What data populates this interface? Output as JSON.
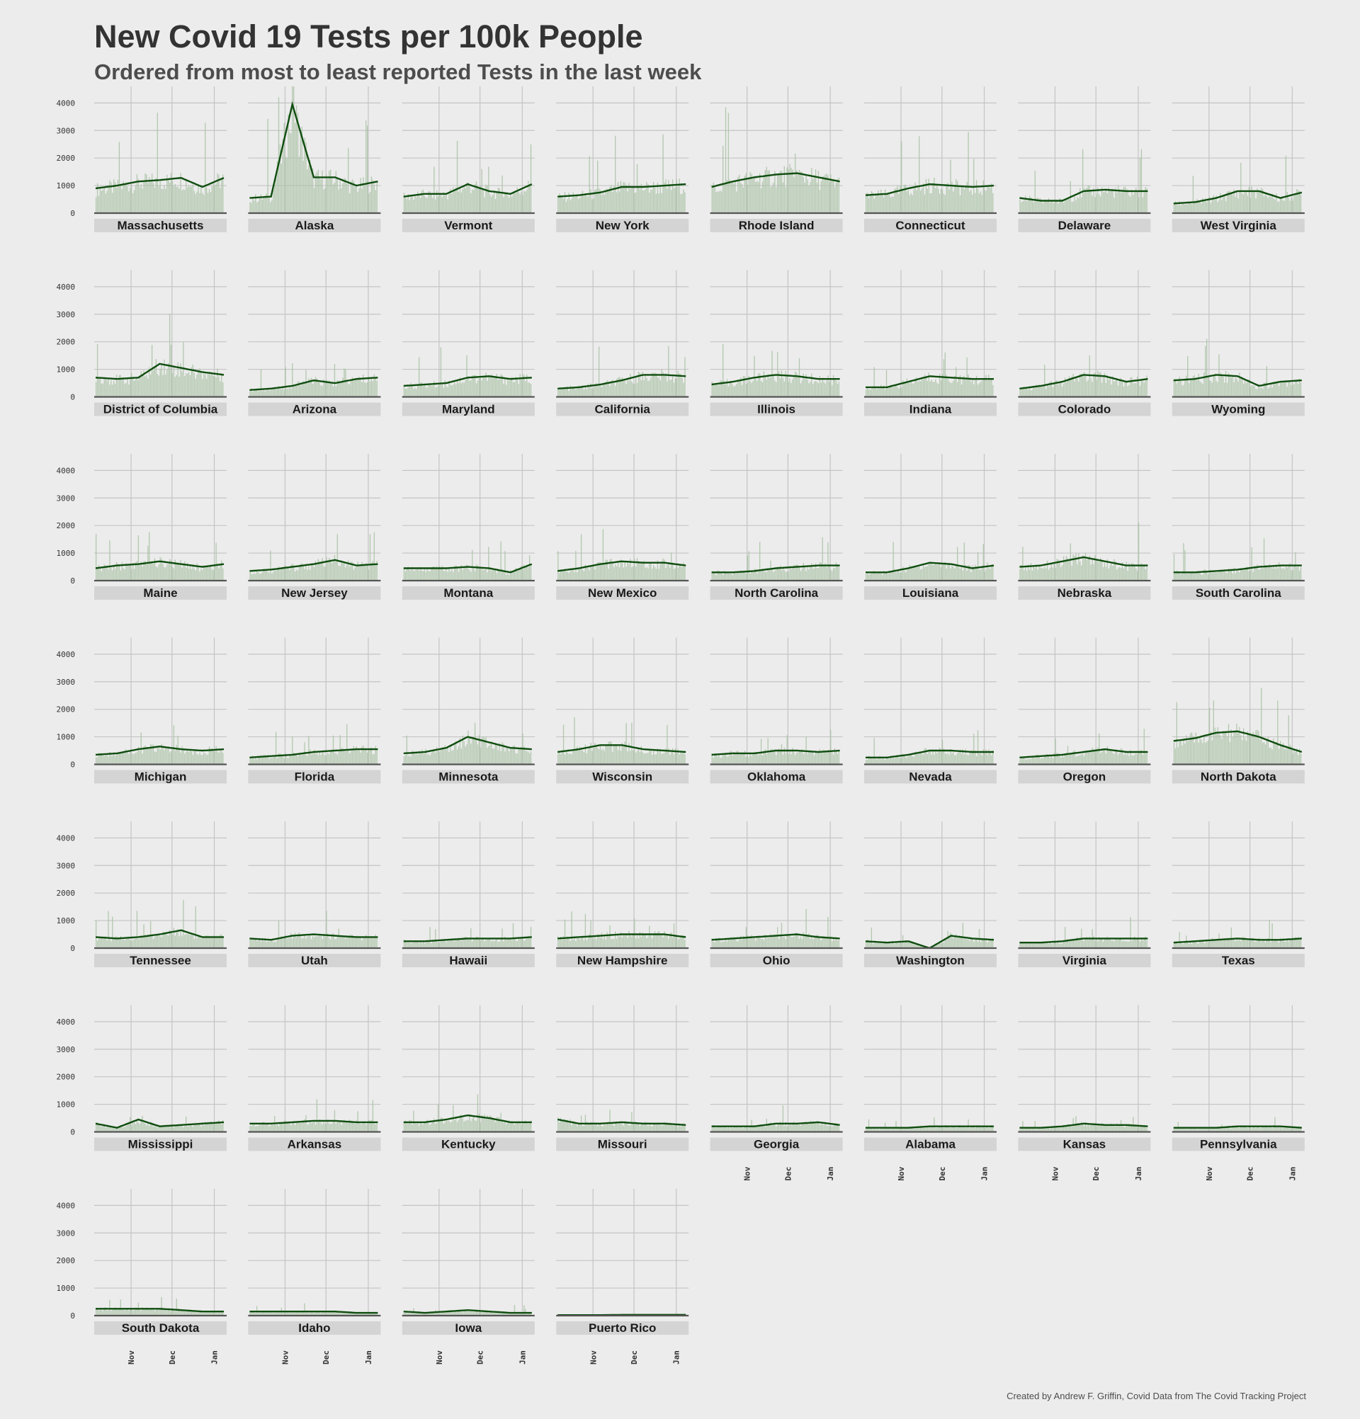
{
  "title": "New Covid 19 Tests per 100k People",
  "subtitle": "Ordered from most to least reported Tests in the last week",
  "caption": "Created by Andrew F. Griffin, Covid Data from The Covid Tracking Project",
  "colors": {
    "background": "#ececec",
    "bar": "#a9c2a4",
    "line": "#0f4d0f",
    "grid": "#c4c4c4",
    "baseline": "#555555",
    "strip": "#d4d4d4"
  },
  "chart_data": {
    "type": "line",
    "ylim": [
      0,
      4600
    ],
    "y_ticks": [
      0,
      1000,
      2000,
      3000,
      4000
    ],
    "y_tick_labels": [
      "0",
      "1000",
      "2000",
      "3000",
      "4000"
    ],
    "x_range": [
      "2020-10-06",
      "2021-01-08"
    ],
    "x_ticks": [
      "2020-11-01",
      "2020-12-01",
      "2021-01-01"
    ],
    "x_tick_labels": [
      "Nov",
      "Dec",
      "Jan"
    ],
    "grid": true,
    "legend": "none",
    "series_encoding": "bars = daily new tests per 100k; line = rolling average",
    "x_points": [
      "2020-10-06",
      "2020-10-22",
      "2020-11-06",
      "2020-11-22",
      "2020-12-08",
      "2020-12-24",
      "2021-01-08"
    ],
    "facets": [
      {
        "name": "Massachusetts",
        "values": [
          900,
          1000,
          1150,
          1200,
          1280,
          950,
          1280
        ]
      },
      {
        "name": "Alaska",
        "values": [
          550,
          600,
          3950,
          1300,
          1300,
          1000,
          1150
        ]
      },
      {
        "name": "Vermont",
        "values": [
          600,
          700,
          700,
          1050,
          800,
          700,
          1050
        ]
      },
      {
        "name": "New York",
        "values": [
          600,
          650,
          750,
          950,
          950,
          1000,
          1050
        ]
      },
      {
        "name": "Rhode Island",
        "values": [
          950,
          1150,
          1300,
          1400,
          1450,
          1300,
          1150
        ]
      },
      {
        "name": "Connecticut",
        "values": [
          650,
          700,
          900,
          1050,
          1000,
          950,
          1000
        ]
      },
      {
        "name": "Delaware",
        "values": [
          550,
          450,
          450,
          800,
          850,
          800,
          800
        ]
      },
      {
        "name": "West Virginia",
        "values": [
          350,
          400,
          550,
          800,
          800,
          550,
          750
        ]
      },
      {
        "name": "District of Columbia",
        "values": [
          700,
          650,
          700,
          1200,
          1050,
          900,
          800
        ]
      },
      {
        "name": "Arizona",
        "values": [
          250,
          300,
          400,
          600,
          500,
          650,
          700
        ]
      },
      {
        "name": "Maryland",
        "values": [
          400,
          450,
          500,
          700,
          750,
          650,
          700
        ]
      },
      {
        "name": "California",
        "values": [
          300,
          350,
          450,
          600,
          800,
          800,
          750
        ]
      },
      {
        "name": "Illinois",
        "values": [
          450,
          550,
          700,
          800,
          750,
          650,
          650
        ]
      },
      {
        "name": "Indiana",
        "values": [
          350,
          350,
          550,
          750,
          700,
          650,
          650
        ]
      },
      {
        "name": "Colorado",
        "values": [
          300,
          400,
          550,
          800,
          750,
          550,
          650
        ]
      },
      {
        "name": "Wyoming",
        "values": [
          600,
          650,
          800,
          750,
          400,
          550,
          600
        ]
      },
      {
        "name": "Maine",
        "values": [
          450,
          550,
          600,
          700,
          600,
          500,
          600
        ]
      },
      {
        "name": "New Jersey",
        "values": [
          350,
          400,
          500,
          600,
          750,
          550,
          600
        ]
      },
      {
        "name": "Montana",
        "values": [
          450,
          450,
          450,
          500,
          450,
          300,
          600
        ]
      },
      {
        "name": "New Mexico",
        "values": [
          350,
          450,
          600,
          700,
          650,
          650,
          550
        ]
      },
      {
        "name": "North Carolina",
        "values": [
          300,
          300,
          350,
          450,
          500,
          550,
          550
        ]
      },
      {
        "name": "Louisiana",
        "values": [
          300,
          300,
          450,
          650,
          600,
          450,
          550
        ]
      },
      {
        "name": "Nebraska",
        "values": [
          500,
          550,
          700,
          850,
          700,
          550,
          550
        ]
      },
      {
        "name": "South Carolina",
        "values": [
          300,
          300,
          350,
          400,
          500,
          550,
          550
        ]
      },
      {
        "name": "Michigan",
        "values": [
          350,
          400,
          550,
          650,
          550,
          500,
          550
        ]
      },
      {
        "name": "Florida",
        "values": [
          250,
          300,
          350,
          450,
          500,
          550,
          550
        ]
      },
      {
        "name": "Minnesota",
        "values": [
          400,
          450,
          600,
          1000,
          800,
          600,
          550
        ]
      },
      {
        "name": "Wisconsin",
        "values": [
          450,
          550,
          700,
          700,
          550,
          500,
          450
        ]
      },
      {
        "name": "Oklahoma",
        "values": [
          350,
          400,
          400,
          500,
          500,
          450,
          500
        ]
      },
      {
        "name": "Nevada",
        "values": [
          250,
          250,
          350,
          500,
          500,
          450,
          450
        ]
      },
      {
        "name": "Oregon",
        "values": [
          250,
          300,
          350,
          450,
          550,
          450,
          450
        ]
      },
      {
        "name": "North Dakota",
        "values": [
          850,
          950,
          1150,
          1200,
          1000,
          700,
          450
        ]
      },
      {
        "name": "Tennessee",
        "values": [
          400,
          350,
          400,
          500,
          650,
          400,
          400
        ]
      },
      {
        "name": "Utah",
        "values": [
          350,
          300,
          450,
          500,
          450,
          400,
          400
        ]
      },
      {
        "name": "Hawaii",
        "values": [
          250,
          250,
          300,
          350,
          350,
          350,
          400
        ]
      },
      {
        "name": "New Hampshire",
        "values": [
          350,
          400,
          450,
          500,
          500,
          500,
          400
        ]
      },
      {
        "name": "Ohio",
        "values": [
          300,
          350,
          400,
          450,
          500,
          400,
          350
        ]
      },
      {
        "name": "Washington",
        "values": [
          250,
          200,
          250,
          0,
          450,
          350,
          300
        ]
      },
      {
        "name": "Virginia",
        "values": [
          200,
          200,
          250,
          350,
          350,
          350,
          350
        ]
      },
      {
        "name": "Texas",
        "values": [
          200,
          250,
          300,
          350,
          300,
          300,
          350
        ]
      },
      {
        "name": "Mississippi",
        "values": [
          300,
          150,
          450,
          200,
          250,
          300,
          350
        ]
      },
      {
        "name": "Arkansas",
        "values": [
          300,
          300,
          350,
          400,
          400,
          350,
          350
        ]
      },
      {
        "name": "Kentucky",
        "values": [
          350,
          350,
          450,
          600,
          500,
          350,
          350
        ]
      },
      {
        "name": "Missouri",
        "values": [
          450,
          300,
          300,
          350,
          300,
          300,
          250
        ]
      },
      {
        "name": "Georgia",
        "values": [
          200,
          200,
          200,
          300,
          300,
          350,
          250
        ]
      },
      {
        "name": "Alabama",
        "values": [
          150,
          150,
          150,
          200,
          200,
          200,
          200
        ]
      },
      {
        "name": "Kansas",
        "values": [
          150,
          150,
          200,
          300,
          250,
          250,
          200
        ]
      },
      {
        "name": "Pennsylvania",
        "values": [
          150,
          150,
          150,
          200,
          200,
          200,
          150
        ]
      },
      {
        "name": "South Dakota",
        "values": [
          250,
          250,
          250,
          250,
          200,
          150,
          150
        ]
      },
      {
        "name": "Idaho",
        "values": [
          150,
          150,
          150,
          150,
          150,
          100,
          100
        ]
      },
      {
        "name": "Iowa",
        "values": [
          150,
          100,
          150,
          200,
          150,
          100,
          100
        ]
      },
      {
        "name": "Puerto Rico",
        "values": [
          20,
          20,
          20,
          30,
          30,
          30,
          30
        ]
      }
    ]
  }
}
